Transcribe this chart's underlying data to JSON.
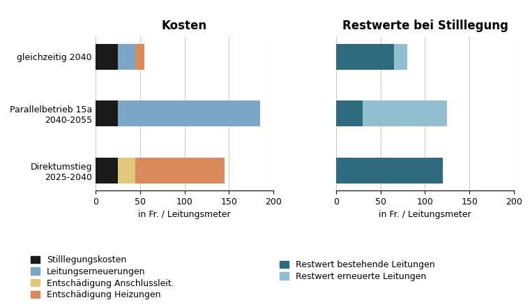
{
  "categories": [
    "gleichzeitig 2040",
    "Parallelbetrieb 15a\n2040-2055",
    "Direktumstieg\n2025-2040"
  ],
  "left_title": "Kosten",
  "right_title": "Restwerte bei Stilllegung",
  "xlabel": "in Fr. / Leitungsmeter",
  "kosten": {
    "Stilllegungskosten": [
      25,
      25,
      25
    ],
    "Leitungserneuerungen": [
      20,
      160,
      0
    ],
    "Entschaedigung_Anschlussleitung": [
      0,
      0,
      20
    ],
    "Entschaedigung_Heizungen": [
      10,
      0,
      100
    ]
  },
  "kosten_colors": {
    "Stilllegungskosten": "#1a1a1a",
    "Leitungserneuerungen": "#7aa7c7",
    "Entschaedigung_Anschlussleitung": "#e0c97a",
    "Entschaedigung_Heizungen": "#d9895a"
  },
  "kosten_labels": {
    "Stilllegungskosten": "Stilllegungskosten",
    "Leitungserneuerungen": "Leitungserneuerungen",
    "Entschaedigung_Anschlussleitung": "Entschädigung Anschlussleit.",
    "Entschaedigung_Heizungen": "Entschädigung Heizungen"
  },
  "kosten_xlim": [
    0,
    200
  ],
  "kosten_xticks": [
    0,
    50,
    100,
    150,
    200
  ],
  "restwerte": {
    "Restwert_bestehende_Leitungen": [
      65,
      30,
      120
    ],
    "Restwert_erneuerte_Leitungen": [
      15,
      95,
      0
    ]
  },
  "restwerte_colors": {
    "Restwert_bestehende_Leitungen": "#2e6b7e",
    "Restwert_erneuerte_Leitungen": "#8fbfd0"
  },
  "restwerte_labels": {
    "Restwert_bestehende_Leitungen": "Restwert bestehende Leitungen",
    "Restwert_erneuerte_Leitungen": "Restwert erneuerte Leitungen"
  },
  "restwerte_xlim": [
    0,
    200
  ],
  "restwerte_xticks": [
    0,
    50,
    100,
    150,
    200
  ],
  "bg_color": "#ffffff",
  "title_fontsize": 12,
  "label_fontsize": 9,
  "tick_fontsize": 9,
  "legend_fontsize": 9,
  "bar_height": 0.45
}
